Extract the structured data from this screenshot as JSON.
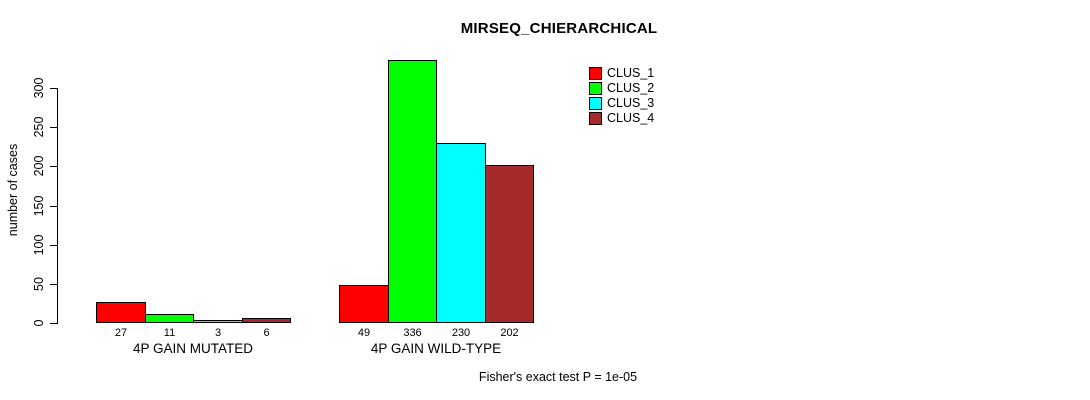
{
  "chart_data": {
    "type": "bar",
    "title": "MIRSEQ_CHIERARCHICAL",
    "xlabel": "",
    "ylabel": "number of cases",
    "annotation": "Fisher's exact test P = 1e-05",
    "categories": [
      "4P GAIN MUTATED",
      "4P GAIN WILD-TYPE"
    ],
    "series": [
      {
        "name": "CLUS_1",
        "color": "#ff0000",
        "values": [
          27,
          49
        ]
      },
      {
        "name": "CLUS_2",
        "color": "#00ff00",
        "values": [
          11,
          336
        ]
      },
      {
        "name": "CLUS_3",
        "color": "#00ffff",
        "values": [
          3,
          230
        ]
      },
      {
        "name": "CLUS_4",
        "color": "#a52a2a",
        "values": [
          6,
          202
        ]
      }
    ],
    "yticks": [
      0,
      50,
      100,
      150,
      200,
      250,
      300
    ],
    "ylim": [
      0,
      300
    ],
    "grid": false,
    "bar_value_labels_shown": true,
    "legend_position": "top-right",
    "axis_color": "#000000",
    "background_color": "#ffffff"
  }
}
